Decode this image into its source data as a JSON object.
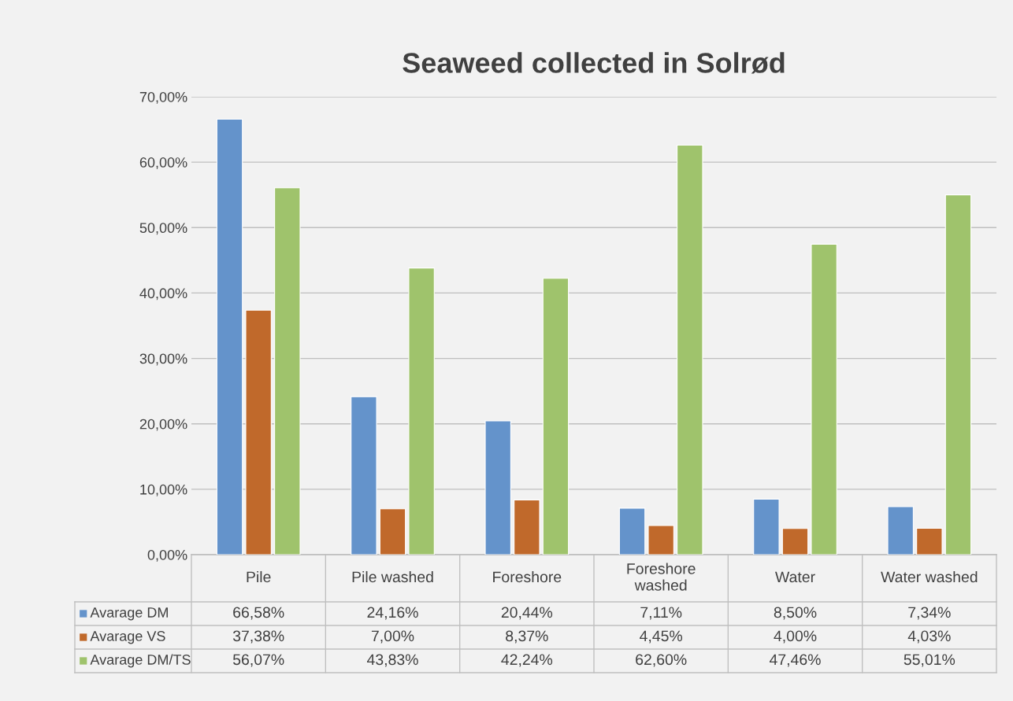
{
  "chart_data": {
    "type": "bar",
    "title": "Seaweed collected in Solrød",
    "categories": [
      "Pile",
      "Pile washed",
      "Foreshore",
      "Foreshore\nwashed",
      "Water",
      "Water washed"
    ],
    "series": [
      {
        "name": "Avarage DM",
        "color": "#6493cb",
        "values": [
          66.58,
          24.16,
          20.44,
          7.11,
          8.5,
          7.34
        ],
        "value_labels": [
          "66,58%",
          "24,16%",
          "20,44%",
          "7,11%",
          "8,50%",
          "7,34%"
        ]
      },
      {
        "name": "Avarage VS",
        "color": "#c0692b",
        "values": [
          37.38,
          7.0,
          8.37,
          4.45,
          4.0,
          4.03
        ],
        "value_labels": [
          "37,38%",
          "7,00%",
          "8,37%",
          "4,45%",
          "4,00%",
          "4,03%"
        ]
      },
      {
        "name": "Avarage DM/TS",
        "color": "#9fc36c",
        "values": [
          56.07,
          43.83,
          42.24,
          62.6,
          47.46,
          55.01
        ],
        "value_labels": [
          "56,07%",
          "43,83%",
          "42,24%",
          "62,60%",
          "47,46%",
          "55,01%"
        ]
      }
    ],
    "ylim": [
      0,
      70
    ],
    "yticks": [
      {
        "value": 0,
        "label": "0,00%"
      },
      {
        "value": 10,
        "label": "10,00%"
      },
      {
        "value": 20,
        "label": "20,00%"
      },
      {
        "value": 30,
        "label": "30,00%"
      },
      {
        "value": 40,
        "label": "40,00%"
      },
      {
        "value": 50,
        "label": "50,00%"
      },
      {
        "value": 60,
        "label": "60,00%"
      },
      {
        "value": 70,
        "label": "70,00%"
      }
    ],
    "grid": "y",
    "legend": "bottom left"
  }
}
